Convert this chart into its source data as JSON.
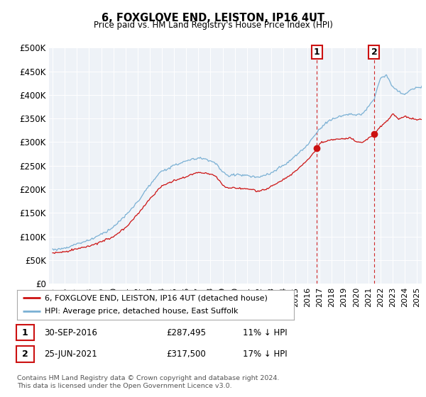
{
  "title": "6, FOXGLOVE END, LEISTON, IP16 4UT",
  "subtitle": "Price paid vs. HM Land Registry's House Price Index (HPI)",
  "ylabel_ticks": [
    "£0",
    "£50K",
    "£100K",
    "£150K",
    "£200K",
    "£250K",
    "£300K",
    "£350K",
    "£400K",
    "£450K",
    "£500K"
  ],
  "ytick_values": [
    0,
    50000,
    100000,
    150000,
    200000,
    250000,
    300000,
    350000,
    400000,
    450000,
    500000
  ],
  "ylim": [
    0,
    500000
  ],
  "sale1_date": 2016.75,
  "sale1_price": 287495,
  "sale1_label": "1",
  "sale2_date": 2021.48,
  "sale2_price": 317500,
  "sale2_label": "2",
  "hpi_color": "#7ab0d4",
  "price_color": "#cc1111",
  "dashed_color": "#cc1111",
  "annotation_box_color": "#cc1111",
  "legend_label_price": "6, FOXGLOVE END, LEISTON, IP16 4UT (detached house)",
  "legend_label_hpi": "HPI: Average price, detached house, East Suffolk",
  "table_row1": [
    "1",
    "30-SEP-2016",
    "£287,495",
    "11% ↓ HPI"
  ],
  "table_row2": [
    "2",
    "25-JUN-2021",
    "£317,500",
    "17% ↓ HPI"
  ],
  "footer": "Contains HM Land Registry data © Crown copyright and database right 2024.\nThis data is licensed under the Open Government Licence v3.0.",
  "chart_bg": "#eef2f7",
  "fig_bg": "#ffffff"
}
